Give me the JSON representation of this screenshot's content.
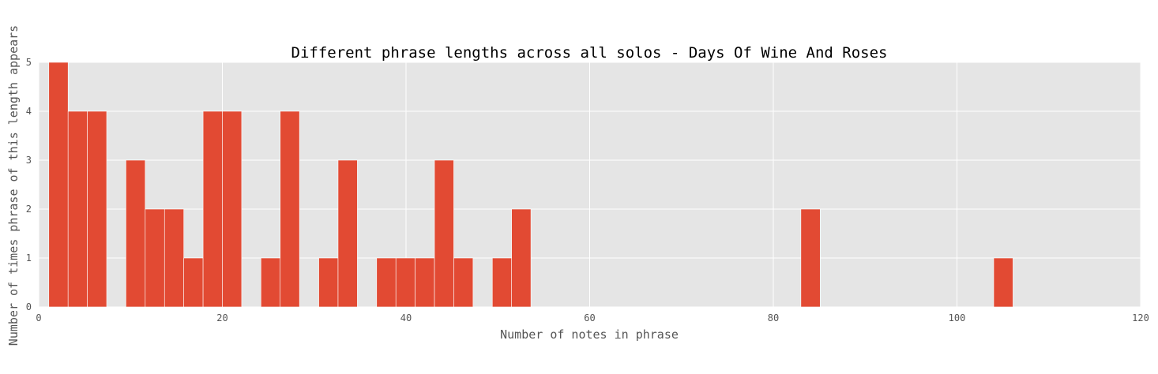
{
  "chart_data": {
    "type": "bar",
    "title": "Different phrase lengths across all solos - Days Of Wine And Roses",
    "xlabel": "Number of notes in phrase",
    "ylabel": "Number of times phrase of this length appears",
    "xlim": [
      0,
      120
    ],
    "ylim": [
      0,
      5
    ],
    "xticks": [
      0,
      20,
      40,
      60,
      80,
      100,
      120
    ],
    "yticks": [
      0,
      1,
      2,
      3,
      4,
      5
    ],
    "grid": true,
    "colors": {
      "bar": "#E24A33",
      "background": "#E5E5E5",
      "grid": "#FFFFFF"
    },
    "bars": [
      {
        "x0": 1.1,
        "x1": 3.2,
        "value": 5
      },
      {
        "x0": 3.2,
        "x1": 5.3,
        "value": 4
      },
      {
        "x0": 5.3,
        "x1": 7.4,
        "value": 4
      },
      {
        "x0": 9.5,
        "x1": 11.6,
        "value": 3
      },
      {
        "x0": 11.6,
        "x1": 13.7,
        "value": 2
      },
      {
        "x0": 13.7,
        "x1": 15.8,
        "value": 2
      },
      {
        "x0": 15.8,
        "x1": 17.9,
        "value": 1
      },
      {
        "x0": 17.9,
        "x1": 20.0,
        "value": 4
      },
      {
        "x0": 20.0,
        "x1": 22.1,
        "value": 4
      },
      {
        "x0": 24.2,
        "x1": 26.3,
        "value": 1
      },
      {
        "x0": 26.3,
        "x1": 28.4,
        "value": 4
      },
      {
        "x0": 30.5,
        "x1": 32.6,
        "value": 1
      },
      {
        "x0": 32.6,
        "x1": 34.7,
        "value": 3
      },
      {
        "x0": 36.8,
        "x1": 38.9,
        "value": 1
      },
      {
        "x0": 38.9,
        "x1": 41.0,
        "value": 1
      },
      {
        "x0": 41.0,
        "x1": 43.1,
        "value": 1
      },
      {
        "x0": 43.1,
        "x1": 45.2,
        "value": 3
      },
      {
        "x0": 45.2,
        "x1": 47.3,
        "value": 1
      },
      {
        "x0": 49.4,
        "x1": 51.5,
        "value": 1
      },
      {
        "x0": 51.5,
        "x1": 53.6,
        "value": 2
      },
      {
        "x0": 83.0,
        "x1": 85.1,
        "value": 2
      },
      {
        "x0": 104.0,
        "x1": 106.1,
        "value": 1
      }
    ]
  }
}
